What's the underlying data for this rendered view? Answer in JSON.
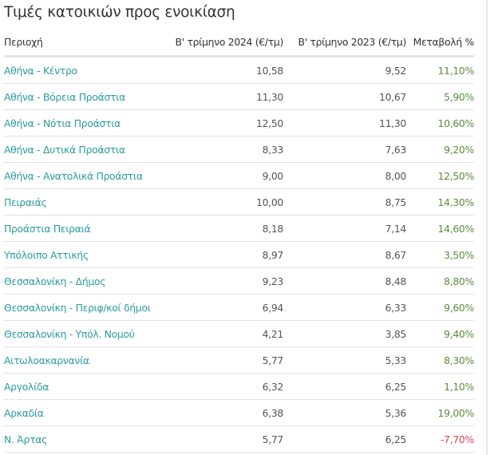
{
  "title": "Τιμές κατοικιών προς ενοικίαση",
  "colors": {
    "region": "#2b9c9e",
    "positive": "#5c8c3c",
    "negative": "#d8454f"
  },
  "headers": [
    "Περιοχή",
    "Β' τρίμηνο 2024 (€/τμ)",
    "Β' τρίμηνο 2023 (€/τμ)",
    "Μεταβολή %"
  ],
  "rows": [
    {
      "region": "Αθήνα - Κέντρο",
      "q2_2024": "10,58",
      "q2_2023": "9,52",
      "change": "11,10%"
    },
    {
      "region": "Αθήνα - Βόρεια Προάστια",
      "q2_2024": "11,30",
      "q2_2023": "10,67",
      "change": "5,90%"
    },
    {
      "region": "Αθήνα - Νότια Προάστια",
      "q2_2024": "12,50",
      "q2_2023": "11,30",
      "change": "10,60%"
    },
    {
      "region": "Αθήνα - Δυτικά Προάστια",
      "q2_2024": "8,33",
      "q2_2023": "7,63",
      "change": "9,20%"
    },
    {
      "region": "Αθήνα - Ανατολικά Προάστια",
      "q2_2024": "9,00",
      "q2_2023": "8,00",
      "change": "12,50%"
    },
    {
      "region": "Πειραιάς",
      "q2_2024": "10,00",
      "q2_2023": "8,75",
      "change": "14,30%"
    },
    {
      "region": "Προάστια Πειραιά",
      "q2_2024": "8,18",
      "q2_2023": "7,14",
      "change": "14,60%"
    },
    {
      "region": "Υπόλοιπο Αττικής",
      "q2_2024": "8,97",
      "q2_2023": "8,67",
      "change": "3,50%"
    },
    {
      "region": "Θεσσαλονίκη - Δήμος",
      "q2_2024": "9,23",
      "q2_2023": "8,48",
      "change": "8,80%"
    },
    {
      "region": "Θεσσαλονίκη - Περιφ/κοί δήμοι",
      "q2_2024": "6,94",
      "q2_2023": "6,33",
      "change": "9,60%"
    },
    {
      "region": "Θεσσαλονίκη - Υπόλ. Νομού",
      "q2_2024": "4,21",
      "q2_2023": "3,85",
      "change": "9,40%"
    },
    {
      "region": "Αιτωλοακαρνανία",
      "q2_2024": "5,77",
      "q2_2023": "5,33",
      "change": "8,30%"
    },
    {
      "region": "Αργολίδα",
      "q2_2024": "6,32",
      "q2_2023": "6,25",
      "change": "1,10%"
    },
    {
      "region": "Αρκαδία",
      "q2_2024": "6,38",
      "q2_2023": "5,36",
      "change": "19,00%"
    },
    {
      "region": "Ν. Άρτας",
      "q2_2024": "5,77",
      "q2_2023": "6,25",
      "change": "-7,70%"
    }
  ]
}
